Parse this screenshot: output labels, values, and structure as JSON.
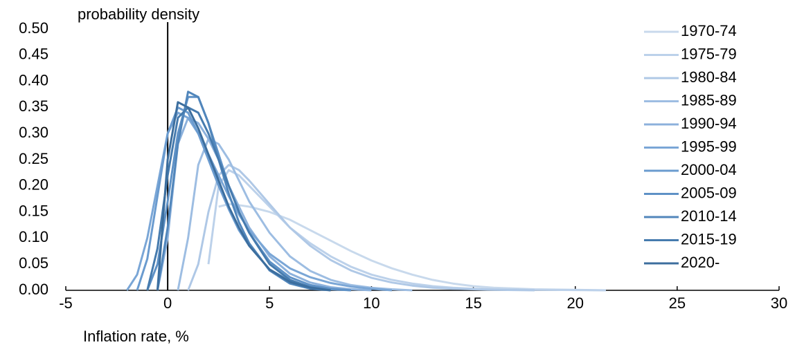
{
  "chart_data": {
    "type": "line",
    "y_label": "probability density",
    "x_label": "Inflation rate, %",
    "x": [
      -2,
      -1.5,
      -1,
      -0.5,
      0,
      0.5,
      1,
      1.5,
      2,
      2.5,
      3,
      3.5,
      4,
      5,
      6,
      7,
      8,
      9,
      10,
      11,
      12,
      13,
      14,
      15,
      16,
      18,
      20,
      21.5
    ],
    "xlim": [
      -5,
      30
    ],
    "xticks": [
      -5,
      0,
      5,
      10,
      15,
      20,
      25,
      30
    ],
    "ylim": [
      0,
      0.5
    ],
    "yticks": [
      {
        "value": 0,
        "label": "0.00"
      },
      {
        "value": 0.05,
        "label": "0.05"
      },
      {
        "value": 0.1,
        "label": "0.10"
      },
      {
        "value": 0.15,
        "label": "0.15"
      },
      {
        "value": 0.2,
        "label": "0.20"
      },
      {
        "value": 0.25,
        "label": "0.25"
      },
      {
        "value": 0.3,
        "label": "0.30"
      },
      {
        "value": 0.35,
        "label": "0.35"
      },
      {
        "value": 0.4,
        "label": "0.40"
      },
      {
        "value": 0.45,
        "label": "0.45"
      },
      {
        "value": 0.5,
        "label": "0.50"
      }
    ],
    "legend": "right",
    "series": [
      {
        "name": "1970-74",
        "color": "#c8d9ec",
        "values": [
          null,
          null,
          null,
          null,
          null,
          null,
          null,
          null,
          null,
          0.16,
          0.165,
          0.163,
          0.16,
          0.15,
          0.135,
          0.115,
          0.095,
          0.075,
          0.057,
          0.042,
          0.03,
          0.02,
          0.013,
          0.008,
          0.005,
          0.002,
          0.001,
          0
        ]
      },
      {
        "name": "1975-79",
        "color": "#bcd1ea",
        "values": [
          null,
          null,
          null,
          null,
          null,
          null,
          null,
          null,
          0.05,
          0.2,
          0.23,
          0.22,
          0.2,
          0.16,
          0.12,
          0.09,
          0.065,
          0.045,
          0.03,
          0.02,
          0.013,
          0.008,
          0.005,
          0.003,
          0.002,
          0.001,
          0.0005,
          0
        ]
      },
      {
        "name": "1980-84",
        "color": "#afc8e6",
        "values": [
          null,
          null,
          null,
          null,
          null,
          null,
          0,
          0.05,
          0.15,
          0.22,
          0.24,
          0.23,
          0.21,
          0.165,
          0.12,
          0.085,
          0.058,
          0.038,
          0.024,
          0.015,
          0.009,
          0.005,
          0.003,
          0.002,
          0.001,
          0,
          null,
          null
        ]
      },
      {
        "name": "1985-89",
        "color": "#9dbde2",
        "values": [
          null,
          null,
          null,
          null,
          null,
          0,
          0.1,
          0.24,
          0.29,
          0.28,
          0.25,
          0.21,
          0.17,
          0.11,
          0.065,
          0.037,
          0.02,
          0.01,
          0.005,
          0.002,
          0,
          null,
          null,
          null,
          null,
          null,
          null,
          null
        ]
      },
      {
        "name": "1990-94",
        "color": "#8cb1dc",
        "values": [
          null,
          null,
          null,
          0,
          0.1,
          0.28,
          0.33,
          0.32,
          0.29,
          0.25,
          0.2,
          0.16,
          0.12,
          0.065,
          0.032,
          0.015,
          0.006,
          0.002,
          0,
          null,
          null,
          null,
          null,
          null,
          null,
          null,
          null,
          null
        ]
      },
      {
        "name": "1995-99",
        "color": "#7aa6d6",
        "values": [
          0,
          0.03,
          0.1,
          0.2,
          0.3,
          0.34,
          0.33,
          0.3,
          0.26,
          0.22,
          0.18,
          0.145,
          0.115,
          0.07,
          0.042,
          0.025,
          0.014,
          0.007,
          0.003,
          0,
          null,
          null,
          null,
          null,
          null,
          null,
          null,
          null
        ]
      },
      {
        "name": "2000-04",
        "color": "#6a9bcf",
        "values": [
          null,
          0,
          0.06,
          0.18,
          0.3,
          0.35,
          0.34,
          0.3,
          0.25,
          0.2,
          0.155,
          0.115,
          0.085,
          0.04,
          0.018,
          0.007,
          0.002,
          0,
          null,
          null,
          null,
          null,
          null,
          null,
          null,
          null,
          null,
          null
        ]
      },
      {
        "name": "2005-09",
        "color": "#5e91c6",
        "values": [
          null,
          null,
          0,
          0.05,
          0.17,
          0.3,
          0.37,
          0.37,
          0.32,
          0.26,
          0.2,
          0.15,
          0.11,
          0.055,
          0.025,
          0.01,
          0.003,
          0,
          null,
          null,
          null,
          null,
          null,
          null,
          null,
          null,
          null,
          null
        ]
      },
      {
        "name": "2010-14",
        "color": "#5186bb",
        "values": [
          null,
          null,
          null,
          0,
          0.12,
          0.28,
          0.38,
          0.37,
          0.32,
          0.25,
          0.185,
          0.13,
          0.09,
          0.038,
          0.013,
          0.003,
          0,
          null,
          null,
          null,
          null,
          null,
          null,
          null,
          null,
          null,
          null,
          null
        ]
      },
      {
        "name": "2015-19",
        "color": "#467bae",
        "values": [
          null,
          null,
          0,
          0.08,
          0.22,
          0.33,
          0.35,
          0.34,
          0.3,
          0.25,
          0.2,
          0.15,
          0.11,
          0.05,
          0.02,
          0.006,
          0,
          null,
          null,
          null,
          null,
          null,
          null,
          null,
          null,
          null,
          null,
          null
        ]
      },
      {
        "name": "2020-",
        "color": "#3c6e9e",
        "values": [
          null,
          null,
          null,
          0,
          0.25,
          0.36,
          0.35,
          0.31,
          0.26,
          0.21,
          0.16,
          0.12,
          0.085,
          0.04,
          0.016,
          0.005,
          0,
          null,
          null,
          null,
          null,
          null,
          null,
          null,
          null,
          null,
          null,
          null
        ]
      }
    ]
  }
}
